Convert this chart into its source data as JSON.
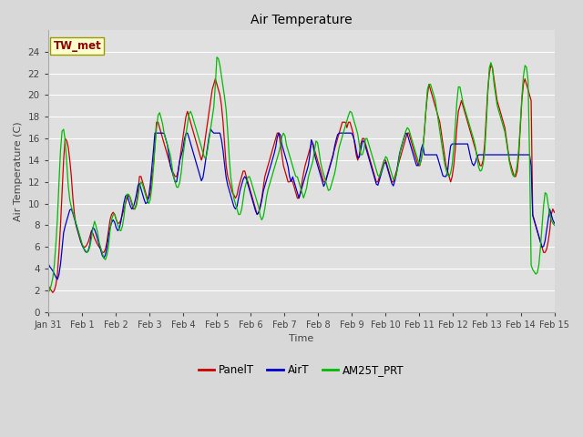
{
  "title": "Air Temperature",
  "xlabel": "Time",
  "ylabel": "Air Temperature (C)",
  "annotation_text": "TW_met",
  "annotation_color": "#8B0000",
  "annotation_bg": "#FFFFCC",
  "annotation_border": "#999900",
  "legend_labels": [
    "PanelT",
    "AirT",
    "AM25T_PRT"
  ],
  "line_colors": [
    "#CC0000",
    "#0000CC",
    "#00BB00"
  ],
  "ylim": [
    0,
    26
  ],
  "yticks": [
    0,
    2,
    4,
    6,
    8,
    10,
    12,
    14,
    16,
    18,
    20,
    22,
    24
  ],
  "x_labels": [
    "Jan 31",
    "Feb 1",
    "Feb 2",
    "Feb 3",
    "Feb 4",
    "Feb 5",
    "Feb 6",
    "Feb 7",
    "Feb 8",
    "Feb 9",
    "Feb 10",
    "Feb 11",
    "Feb 12",
    "Feb 13",
    "Feb 14",
    "Feb 15"
  ],
  "bg_color": "#D8D8D8",
  "plot_bg": "#E0E0E0",
  "grid_color": "#FFFFFF",
  "panel_T": [
    2.5,
    2.2,
    2.0,
    1.8,
    2.0,
    2.5,
    3.5,
    5.5,
    8.0,
    11.0,
    14.0,
    16.0,
    15.8,
    15.2,
    14.0,
    12.5,
    10.5,
    9.0,
    8.0,
    7.5,
    7.0,
    6.5,
    6.2,
    6.0,
    6.0,
    6.2,
    6.5,
    7.0,
    7.5,
    7.2,
    6.8,
    6.5,
    6.2,
    6.0,
    5.8,
    5.5,
    5.5,
    5.8,
    6.5,
    7.5,
    8.5,
    9.0,
    9.2,
    9.0,
    8.5,
    8.2,
    8.2,
    8.5,
    9.0,
    9.5,
    10.0,
    10.5,
    10.8,
    10.5,
    10.0,
    9.5,
    9.5,
    10.0,
    11.0,
    12.5,
    12.5,
    12.0,
    11.5,
    11.0,
    10.5,
    10.5,
    11.0,
    12.5,
    13.5,
    15.5,
    17.5,
    17.5,
    17.0,
    16.5,
    16.0,
    15.5,
    15.0,
    14.5,
    14.0,
    13.5,
    13.0,
    12.8,
    12.5,
    12.5,
    13.0,
    14.0,
    15.0,
    16.0,
    17.0,
    18.0,
    18.5,
    18.0,
    17.5,
    17.0,
    16.5,
    16.0,
    15.5,
    15.0,
    14.5,
    14.0,
    14.5,
    15.5,
    16.5,
    17.5,
    18.5,
    19.5,
    20.5,
    21.0,
    21.5,
    21.0,
    20.5,
    20.0,
    19.0,
    17.5,
    15.5,
    13.5,
    12.5,
    12.0,
    11.5,
    11.0,
    10.8,
    10.5,
    10.8,
    11.5,
    12.0,
    12.5,
    13.0,
    13.0,
    12.5,
    12.0,
    11.5,
    11.0,
    10.5,
    10.0,
    9.5,
    9.0,
    9.2,
    9.8,
    10.5,
    11.5,
    12.5,
    13.0,
    13.5,
    14.0,
    14.5,
    15.0,
    15.5,
    16.0,
    16.5,
    16.5,
    15.5,
    14.5,
    13.5,
    13.0,
    12.5,
    12.0,
    12.0,
    12.2,
    12.0,
    11.5,
    11.0,
    10.5,
    10.5,
    11.0,
    12.0,
    12.8,
    13.5,
    14.0,
    14.5,
    15.0,
    15.5,
    15.5,
    15.0,
    14.5,
    14.0,
    13.5,
    13.0,
    12.5,
    12.0,
    12.0,
    12.5,
    13.0,
    13.5,
    14.0,
    14.5,
    15.0,
    15.5,
    16.0,
    16.5,
    17.0,
    17.5,
    17.5,
    17.5,
    17.0,
    17.5,
    17.5,
    17.0,
    16.5,
    15.5,
    14.5,
    14.0,
    14.5,
    15.5,
    16.0,
    16.0,
    15.5,
    15.0,
    14.5,
    14.0,
    13.5,
    13.0,
    12.5,
    12.0,
    12.0,
    12.5,
    13.0,
    13.5,
    14.0,
    14.0,
    13.5,
    13.0,
    12.5,
    12.0,
    12.0,
    12.5,
    13.0,
    13.5,
    14.0,
    14.5,
    15.0,
    15.5,
    16.0,
    16.5,
    16.5,
    16.0,
    15.5,
    15.0,
    14.5,
    14.0,
    13.5,
    13.5,
    14.0,
    15.0,
    16.5,
    18.5,
    20.0,
    21.0,
    20.5,
    20.0,
    19.5,
    19.0,
    18.5,
    18.0,
    17.5,
    16.5,
    15.5,
    14.5,
    13.5,
    13.0,
    12.5,
    12.0,
    12.5,
    13.5,
    15.0,
    17.0,
    18.5,
    19.0,
    19.5,
    19.0,
    18.5,
    18.0,
    17.5,
    17.0,
    16.5,
    16.0,
    15.5,
    15.0,
    14.5,
    14.0,
    13.5,
    13.5,
    14.0,
    15.5,
    18.0,
    20.5,
    22.0,
    22.8,
    22.5,
    21.5,
    20.5,
    19.5,
    19.0,
    18.5,
    18.0,
    17.5,
    17.0,
    16.0,
    15.0,
    14.0,
    13.5,
    13.0,
    12.5,
    12.5,
    13.0,
    14.5,
    17.0,
    19.5,
    21.0,
    21.5,
    21.0,
    20.5,
    20.0,
    19.5,
    9.0,
    8.5,
    8.0,
    7.5,
    7.0,
    6.5,
    6.0,
    5.5,
    5.5,
    5.8,
    6.5,
    7.5,
    9.0,
    9.5,
    9.2
  ],
  "air_T": [
    4.5,
    4.2,
    4.0,
    3.8,
    3.5,
    3.2,
    3.0,
    3.5,
    4.5,
    6.0,
    7.5,
    8.0,
    8.5,
    9.0,
    9.5,
    9.5,
    9.0,
    8.5,
    8.0,
    7.5,
    7.0,
    6.5,
    6.0,
    5.8,
    5.5,
    5.5,
    5.8,
    6.5,
    7.8,
    7.8,
    7.5,
    7.0,
    6.5,
    6.0,
    5.5,
    5.0,
    5.0,
    5.5,
    6.5,
    7.5,
    8.0,
    8.5,
    8.5,
    8.0,
    7.5,
    7.5,
    8.0,
    8.8,
    9.8,
    10.5,
    11.0,
    10.5,
    10.0,
    9.5,
    9.5,
    10.0,
    10.5,
    11.5,
    12.0,
    11.5,
    11.0,
    10.5,
    10.0,
    10.0,
    10.5,
    11.5,
    13.0,
    14.5,
    16.5,
    16.5,
    16.5,
    16.5,
    16.5,
    16.5,
    16.5,
    16.0,
    15.5,
    14.5,
    13.5,
    13.0,
    12.5,
    12.0,
    12.0,
    13.0,
    14.0,
    14.5,
    15.0,
    16.0,
    16.5,
    16.5,
    16.0,
    15.5,
    15.0,
    14.5,
    14.0,
    13.5,
    13.0,
    12.5,
    12.0,
    12.5,
    13.5,
    14.5,
    15.5,
    16.5,
    17.0,
    16.5,
    16.5,
    16.5,
    16.5,
    16.5,
    16.5,
    15.5,
    14.5,
    13.0,
    12.0,
    11.5,
    11.0,
    10.5,
    10.0,
    9.5,
    9.5,
    10.0,
    11.0,
    11.5,
    12.0,
    12.5,
    12.5,
    12.0,
    11.5,
    11.0,
    10.5,
    10.0,
    9.5,
    9.0,
    9.0,
    9.5,
    10.0,
    11.0,
    11.5,
    12.0,
    12.5,
    13.0,
    13.5,
    14.0,
    14.5,
    15.0,
    16.0,
    16.5,
    16.5,
    15.5,
    15.0,
    14.5,
    14.0,
    13.5,
    12.5,
    12.0,
    12.5,
    12.0,
    11.5,
    11.0,
    10.5,
    11.0,
    11.5,
    12.0,
    12.5,
    13.0,
    13.5,
    14.5,
    16.0,
    15.5,
    14.5,
    14.0,
    13.5,
    13.0,
    12.5,
    12.0,
    11.5,
    12.0,
    12.5,
    13.0,
    13.5,
    14.0,
    14.5,
    15.5,
    16.0,
    16.5,
    16.5,
    16.5,
    16.5,
    16.5,
    16.5,
    16.5,
    16.5,
    16.5,
    16.5,
    16.0,
    15.5,
    14.5,
    14.0,
    14.5,
    15.5,
    16.0,
    15.5,
    15.0,
    14.5,
    14.0,
    13.5,
    13.0,
    12.5,
    12.0,
    11.5,
    12.0,
    12.5,
    13.0,
    13.5,
    14.0,
    13.5,
    13.0,
    12.5,
    12.0,
    11.5,
    12.0,
    12.5,
    13.5,
    14.5,
    15.0,
    15.5,
    16.0,
    16.5,
    16.5,
    16.0,
    15.5,
    15.0,
    14.5,
    14.0,
    13.5,
    13.5,
    14.0,
    15.0,
    15.5,
    14.5,
    14.5,
    14.5,
    14.5,
    14.5,
    14.5,
    14.5,
    14.5,
    14.5,
    14.0,
    13.5,
    13.0,
    12.5,
    12.5,
    12.5,
    13.0,
    14.5,
    15.5,
    15.5,
    15.5,
    15.5,
    15.5,
    15.5,
    15.5,
    15.5,
    15.5,
    15.5,
    15.5,
    15.5,
    14.5,
    14.0,
    13.5,
    13.5,
    14.0,
    14.5,
    14.5,
    14.5,
    14.5,
    14.5,
    14.5,
    14.5,
    14.5,
    14.5,
    14.5,
    14.5,
    14.5,
    14.5,
    14.5,
    14.5,
    14.5,
    14.5,
    14.5,
    14.5,
    14.5,
    14.5,
    14.5,
    14.5,
    14.5,
    14.5,
    14.5,
    14.5,
    14.5,
    14.5,
    14.5,
    14.5,
    14.5,
    14.5,
    14.5,
    14.5,
    9.0,
    8.5,
    8.0,
    7.5,
    7.0,
    6.5,
    6.0,
    6.0,
    6.5,
    7.5,
    8.5,
    9.5,
    9.0,
    8.5,
    8.2
  ],
  "am25_T": [
    1.8,
    2.0,
    2.5,
    3.2,
    4.5,
    6.5,
    9.0,
    12.5,
    15.5,
    17.0,
    16.8,
    15.5,
    13.0,
    11.0,
    10.0,
    9.5,
    9.0,
    8.5,
    8.0,
    7.5,
    7.0,
    6.5,
    6.0,
    5.8,
    5.5,
    5.5,
    5.8,
    6.5,
    7.5,
    8.5,
    8.0,
    7.5,
    6.5,
    6.0,
    5.5,
    5.0,
    4.8,
    5.2,
    6.0,
    7.5,
    8.5,
    9.0,
    9.0,
    8.5,
    8.0,
    7.5,
    7.5,
    8.0,
    9.0,
    10.5,
    11.0,
    10.8,
    10.5,
    10.0,
    9.5,
    9.5,
    10.0,
    11.0,
    12.0,
    12.0,
    11.5,
    11.0,
    10.5,
    10.0,
    10.0,
    11.0,
    12.5,
    14.5,
    16.5,
    18.0,
    18.5,
    18.0,
    17.5,
    16.5,
    16.0,
    15.5,
    15.0,
    14.5,
    13.5,
    12.5,
    12.0,
    11.5,
    11.5,
    12.0,
    13.0,
    14.5,
    15.5,
    16.5,
    17.5,
    18.5,
    18.5,
    18.0,
    17.5,
    17.0,
    16.5,
    16.0,
    15.5,
    15.0,
    14.5,
    14.0,
    14.5,
    15.5,
    16.5,
    17.5,
    18.5,
    19.5,
    23.5,
    23.5,
    23.0,
    22.0,
    21.0,
    20.0,
    19.0,
    17.0,
    14.5,
    12.5,
    11.5,
    10.5,
    10.0,
    9.5,
    9.0,
    9.0,
    9.5,
    10.5,
    11.5,
    12.0,
    12.5,
    12.5,
    12.0,
    11.5,
    11.0,
    10.5,
    10.0,
    9.5,
    8.5,
    8.5,
    9.0,
    10.0,
    11.0,
    11.5,
    12.0,
    12.5,
    13.0,
    13.5,
    14.0,
    14.5,
    15.0,
    16.0,
    16.5,
    16.5,
    15.5,
    15.0,
    14.5,
    14.0,
    13.5,
    13.0,
    12.5,
    12.5,
    12.0,
    11.5,
    11.0,
    10.5,
    11.0,
    11.5,
    12.5,
    13.0,
    13.5,
    14.0,
    15.0,
    16.0,
    15.5,
    14.5,
    13.5,
    13.0,
    12.5,
    12.0,
    11.5,
    11.0,
    11.5,
    12.0,
    12.5,
    13.0,
    14.0,
    15.0,
    15.5,
    16.0,
    16.5,
    17.0,
    17.5,
    18.0,
    18.5,
    18.5,
    18.0,
    17.5,
    17.0,
    16.5,
    15.5,
    14.5,
    14.5,
    15.0,
    16.0,
    16.0,
    15.5,
    15.0,
    14.5,
    14.0,
    13.5,
    13.0,
    12.5,
    12.5,
    13.0,
    13.5,
    14.0,
    14.5,
    14.0,
    13.5,
    13.0,
    12.5,
    12.0,
    12.5,
    13.0,
    14.0,
    15.0,
    15.5,
    16.0,
    16.5,
    17.0,
    17.0,
    16.5,
    16.0,
    15.5,
    15.0,
    14.5,
    14.0,
    13.5,
    14.0,
    15.0,
    16.5,
    18.5,
    20.5,
    21.0,
    21.0,
    20.5,
    20.0,
    19.5,
    18.5,
    17.5,
    16.5,
    15.5,
    14.5,
    13.5,
    13.0,
    12.5,
    12.5,
    13.0,
    14.0,
    16.0,
    18.0,
    20.5,
    21.0,
    20.5,
    19.5,
    19.0,
    18.5,
    18.0,
    17.5,
    17.0,
    16.5,
    16.0,
    15.5,
    14.5,
    13.5,
    13.0,
    13.0,
    13.5,
    14.5,
    17.0,
    20.0,
    22.5,
    23.0,
    22.5,
    21.0,
    20.0,
    19.0,
    18.5,
    18.0,
    17.5,
    17.0,
    16.5,
    15.5,
    14.5,
    13.5,
    13.0,
    12.5,
    12.5,
    13.0,
    14.0,
    16.0,
    18.5,
    21.0,
    22.5,
    23.0,
    22.0,
    20.5,
    4.5,
    4.0,
    3.8,
    3.5,
    3.5,
    4.0,
    5.5,
    7.5,
    9.5,
    11.0,
    11.0,
    10.0,
    9.0,
    8.5,
    8.2,
    8.0
  ]
}
